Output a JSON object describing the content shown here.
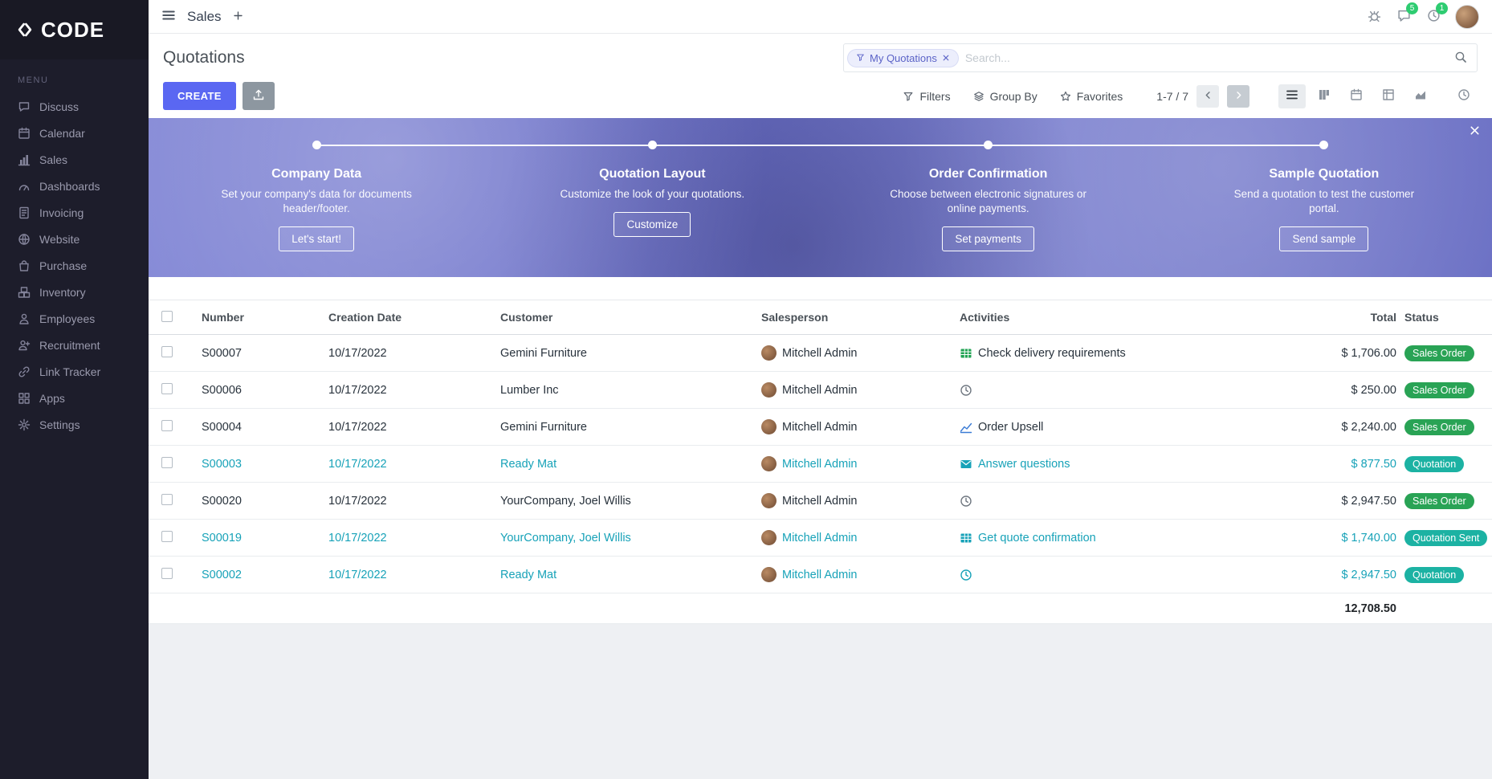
{
  "brand": {
    "logo_text": "CODE"
  },
  "topbar": {
    "app_title": "Sales",
    "messages_badge": "5",
    "activities_badge": "1"
  },
  "sidebar": {
    "menu_label": "MENU",
    "items": [
      {
        "label": "Discuss",
        "icon": "discuss"
      },
      {
        "label": "Calendar",
        "icon": "calendar"
      },
      {
        "label": "Sales",
        "icon": "sales"
      },
      {
        "label": "Dashboards",
        "icon": "dashboards"
      },
      {
        "label": "Invoicing",
        "icon": "invoicing"
      },
      {
        "label": "Website",
        "icon": "website"
      },
      {
        "label": "Purchase",
        "icon": "purchase"
      },
      {
        "label": "Inventory",
        "icon": "inventory"
      },
      {
        "label": "Employees",
        "icon": "employees"
      },
      {
        "label": "Recruitment",
        "icon": "recruitment"
      },
      {
        "label": "Link Tracker",
        "icon": "link"
      },
      {
        "label": "Apps",
        "icon": "apps"
      },
      {
        "label": "Settings",
        "icon": "settings"
      }
    ]
  },
  "control_panel": {
    "title": "Quotations",
    "search": {
      "facet": "My Quotations",
      "placeholder": "Search..."
    },
    "create_label": "CREATE",
    "filters_label": "Filters",
    "group_by_label": "Group By",
    "favorites_label": "Favorites",
    "pager": "1-7 / 7"
  },
  "views": {
    "items": [
      {
        "name": "list",
        "active": true
      },
      {
        "name": "kanban",
        "active": false
      },
      {
        "name": "calendar",
        "active": false
      },
      {
        "name": "pivot",
        "active": false
      },
      {
        "name": "graph",
        "active": false
      },
      {
        "name": "activity",
        "active": false
      }
    ]
  },
  "banner": {
    "overlay_color": "#6d72c9",
    "steps": [
      {
        "title": "Company Data",
        "description": "Set your company's data for documents header/footer.",
        "button": "Let's start!"
      },
      {
        "title": "Quotation Layout",
        "description": "Customize the look of your quotations.",
        "button": "Customize"
      },
      {
        "title": "Order Confirmation",
        "description": "Choose between electronic signatures or online payments.",
        "button": "Set payments"
      },
      {
        "title": "Sample Quotation",
        "description": "Send a quotation to test the customer portal.",
        "button": "Send sample"
      }
    ]
  },
  "table": {
    "headers": {
      "number": "Number",
      "date": "Creation Date",
      "customer": "Customer",
      "salesperson": "Salesperson",
      "activities": "Activities",
      "total": "Total",
      "status": "Status"
    },
    "status_colors": {
      "Sales Order": "#29a355",
      "Quotation": "#1cb2a3",
      "Quotation Sent": "#1cb2a3"
    },
    "rows": [
      {
        "number": "S00007",
        "date": "10/17/2022",
        "customer": "Gemini Furniture",
        "salesperson": "Mitchell Admin",
        "activity_icon": "spreadsheet",
        "activity": "Check delivery requirements",
        "total": "$ 1,706.00",
        "status": "Sales Order",
        "highlight": false
      },
      {
        "number": "S00006",
        "date": "10/17/2022",
        "customer": "Lumber Inc",
        "salesperson": "Mitchell Admin",
        "activity_icon": "clock",
        "activity": "",
        "total": "$ 250.00",
        "status": "Sales Order",
        "highlight": false
      },
      {
        "number": "S00004",
        "date": "10/17/2022",
        "customer": "Gemini Furniture",
        "salesperson": "Mitchell Admin",
        "activity_icon": "chart",
        "activity": "Order Upsell",
        "total": "$ 2,240.00",
        "status": "Sales Order",
        "highlight": false
      },
      {
        "number": "S00003",
        "date": "10/17/2022",
        "customer": "Ready Mat",
        "salesperson": "Mitchell Admin",
        "activity_icon": "envelope",
        "activity": "Answer questions",
        "total": "$ 877.50",
        "status": "Quotation",
        "highlight": true
      },
      {
        "number": "S00020",
        "date": "10/17/2022",
        "customer": "YourCompany, Joel Willis",
        "salesperson": "Mitchell Admin",
        "activity_icon": "clock",
        "activity": "",
        "total": "$ 2,947.50",
        "status": "Sales Order",
        "highlight": false
      },
      {
        "number": "S00019",
        "date": "10/17/2022",
        "customer": "YourCompany, Joel Willis",
        "salesperson": "Mitchell Admin",
        "activity_icon": "spreadsheet",
        "activity": "Get quote confirmation",
        "total": "$ 1,740.00",
        "status": "Quotation Sent",
        "highlight": true
      },
      {
        "number": "S00002",
        "date": "10/17/2022",
        "customer": "Ready Mat",
        "salesperson": "Mitchell Admin",
        "activity_icon": "clock",
        "activity": "",
        "total": "$ 2,947.50",
        "status": "Quotation",
        "highlight": true
      }
    ],
    "sum_total": "12,708.50"
  }
}
